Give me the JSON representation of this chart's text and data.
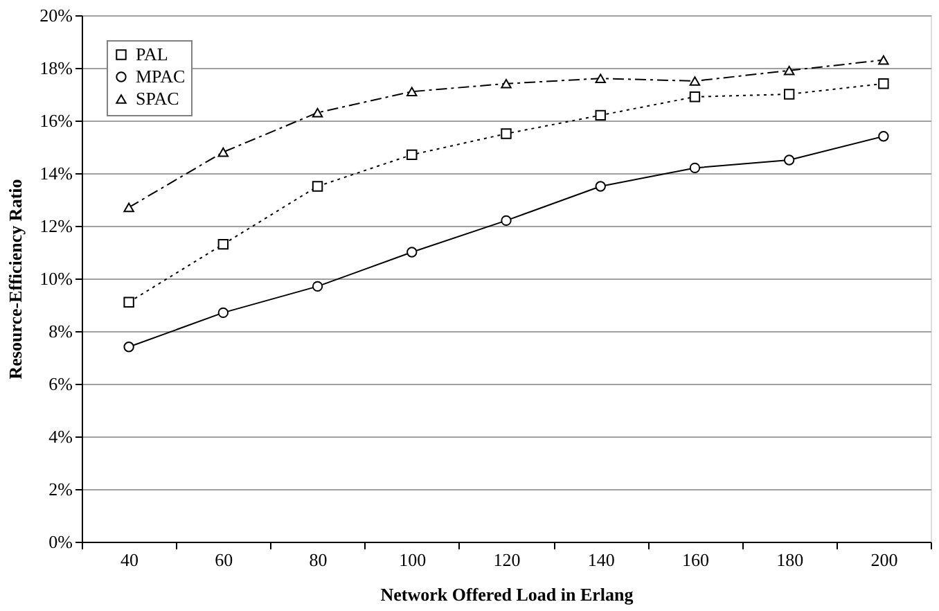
{
  "chart_data": {
    "type": "line",
    "xlabel": "Network Offered Load in Erlang",
    "ylabel": "Resource-Efficiency Ratio",
    "categories": [
      "40",
      "60",
      "80",
      "100",
      "120",
      "140",
      "160",
      "180",
      "200"
    ],
    "series": [
      {
        "name": "PAL",
        "color": "#000000",
        "line_style": "dotted",
        "marker": "square",
        "values": [
          9.1,
          11.3,
          13.5,
          14.7,
          15.5,
          16.2,
          16.9,
          17.0,
          17.4
        ]
      },
      {
        "name": "MPAC",
        "color": "#000000",
        "line_style": "solid",
        "marker": "circle",
        "values": [
          7.4,
          8.7,
          9.7,
          11.0,
          12.2,
          13.5,
          14.2,
          14.5,
          15.4
        ]
      },
      {
        "name": "SPAC",
        "color": "#000000",
        "line_style": "dashed",
        "marker": "triangle",
        "values": [
          12.7,
          14.8,
          16.3,
          17.1,
          17.4,
          17.6,
          17.5,
          17.9,
          18.3
        ]
      }
    ],
    "ylim": [
      0,
      20
    ],
    "yticks": [
      {
        "value": 0,
        "label": "0%"
      },
      {
        "value": 2,
        "label": "2%"
      },
      {
        "value": 4,
        "label": "4%"
      },
      {
        "value": 6,
        "label": "6%"
      },
      {
        "value": 8,
        "label": "8%"
      },
      {
        "value": 10,
        "label": "10%"
      },
      {
        "value": 12,
        "label": "12%"
      },
      {
        "value": 14,
        "label": "14%"
      },
      {
        "value": 16,
        "label": "16%"
      },
      {
        "value": 18,
        "label": "18%"
      },
      {
        "value": 20,
        "label": "20%"
      }
    ],
    "grid": "y",
    "legend": "top left"
  }
}
